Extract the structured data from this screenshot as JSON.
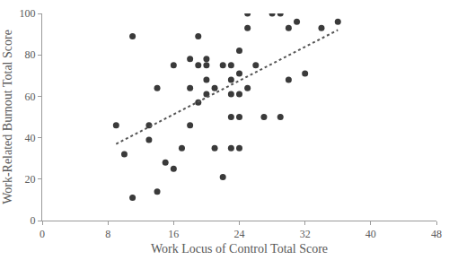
{
  "chart_data": {
    "type": "scatter",
    "x_label": "Work Locus of Control Total Score",
    "y_label": "Work-Related Burnout Total Score",
    "xlim": [
      0,
      48
    ],
    "xticks": [
      0,
      8,
      16,
      24,
      32,
      40,
      48
    ],
    "ylim": [
      0,
      100
    ],
    "yticks": [
      0,
      20,
      40,
      60,
      80,
      100
    ],
    "grid": false,
    "series": [
      {
        "type": "scatter",
        "marker": "circle",
        "color": "#3a3a3a",
        "x": [
          9,
          10,
          11,
          11,
          13,
          13,
          14,
          14,
          15,
          16,
          16,
          17,
          18,
          18,
          18,
          19,
          19,
          19,
          20,
          20,
          20,
          20,
          21,
          21,
          22,
          22,
          23,
          23,
          23,
          23,
          23,
          24,
          24,
          24,
          24,
          24,
          25,
          25,
          25,
          26,
          27,
          28,
          29,
          29,
          30,
          30,
          31,
          32,
          34,
          36
        ],
        "values": [
          46,
          32,
          11,
          89,
          46,
          39,
          64,
          14,
          28,
          25,
          75,
          35,
          46,
          64,
          78,
          89,
          75,
          57,
          78,
          75,
          68,
          61,
          64,
          35,
          21,
          75,
          75,
          68,
          61,
          50,
          35,
          82,
          71,
          61,
          50,
          35,
          100,
          93,
          64,
          75,
          50,
          100,
          100,
          50,
          93,
          68,
          96,
          71,
          93,
          96
        ]
      },
      {
        "type": "line",
        "line_style": "dot",
        "color": "#555555",
        "x": [
          9,
          36
        ],
        "values": [
          37,
          92
        ]
      }
    ]
  }
}
